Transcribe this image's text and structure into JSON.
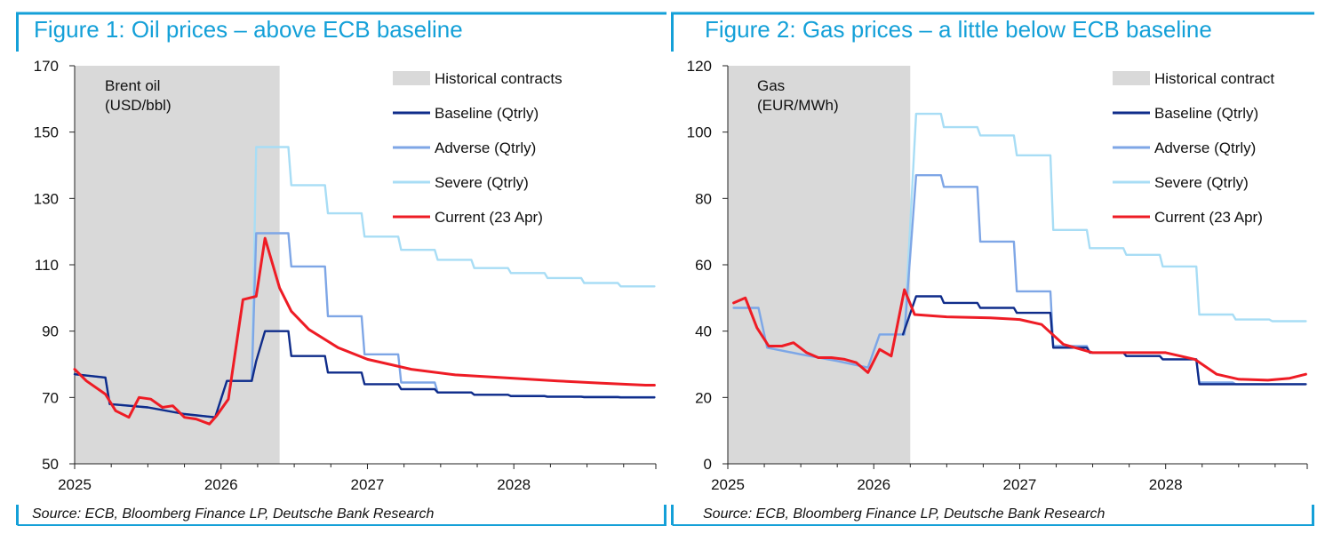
{
  "charts": [
    {
      "title": "Figure 1: Oil prices – above ECB baseline",
      "source": "Source: ECB, Bloomberg Finance LP, Deutsche Bank Research",
      "colors": {
        "accent": "#14a0d8"
      },
      "chart_data": {
        "type": "line",
        "unit_label": [
          "Brent oil",
          "(USD/bbl)"
        ],
        "x_range": [
          2025.0,
          2028.97
        ],
        "ylim": [
          50,
          170
        ],
        "yticks": [
          50,
          70,
          90,
          110,
          130,
          150,
          170
        ],
        "xticks": [
          2025,
          2026,
          2027,
          2028
        ],
        "xtick_labels": [
          "2025",
          "2026",
          "2027",
          "2028"
        ],
        "shaded_region": {
          "label": "Historical contracts",
          "x": [
            2025.0,
            2026.4
          ],
          "color": "#d9d9d9"
        },
        "series": [
          {
            "name": "Severe (Qtrly)",
            "color": "#a8ddf5",
            "width": 2.4,
            "x": [
              2025.0,
              2025.21,
              2025.24,
              2025.5,
              2025.75,
              2025.96,
              2026.04,
              2026.21,
              2026.24,
              2026.46,
              2026.48,
              2026.71,
              2026.73,
              2026.96,
              2026.98,
              2027.21,
              2027.23,
              2027.46,
              2027.48,
              2027.71,
              2027.73,
              2027.96,
              2027.98,
              2028.21,
              2028.23,
              2028.46,
              2028.48,
              2028.71,
              2028.73,
              2028.96
            ],
            "y": [
              77,
              76,
              68,
              67,
              65,
              64,
              75,
              75,
              145.5,
              145.5,
              134,
              134,
              125.5,
              125.5,
              118.5,
              118.5,
              114.5,
              114.5,
              111.5,
              111.5,
              109,
              109,
              107.5,
              107.5,
              106,
              106,
              104.5,
              104.5,
              103.5,
              103.5
            ]
          },
          {
            "name": "Adverse (Qtrly)",
            "color": "#7ea6e6",
            "width": 2.4,
            "x": [
              2025.0,
              2025.21,
              2025.24,
              2025.5,
              2025.75,
              2025.96,
              2026.04,
              2026.21,
              2026.24,
              2026.46,
              2026.48,
              2026.71,
              2026.73,
              2026.96,
              2026.98,
              2027.21,
              2027.23,
              2027.46,
              2027.48,
              2027.71,
              2027.73,
              2027.96,
              2027.98,
              2028.21,
              2028.23,
              2028.46,
              2028.48,
              2028.71,
              2028.73,
              2028.96
            ],
            "y": [
              77,
              76,
              68,
              67,
              65,
              64,
              75,
              75,
              119.5,
              119.5,
              109.5,
              109.5,
              94.5,
              94.5,
              83,
              83,
              74.5,
              74.5,
              71.5,
              71.5,
              70.8,
              70.8,
              70.5,
              70.5,
              70.3,
              70.3,
              70.2,
              70.2,
              70.1,
              70.1
            ]
          },
          {
            "name": "Baseline (Qtrly)",
            "color": "#0f2c8a",
            "width": 2.4,
            "x": [
              2025.0,
              2025.21,
              2025.24,
              2025.5,
              2025.75,
              2025.96,
              2026.04,
              2026.21,
              2026.24,
              2026.3,
              2026.46,
              2026.48,
              2026.71,
              2026.73,
              2026.96,
              2026.98,
              2027.21,
              2027.23,
              2027.46,
              2027.48,
              2027.71,
              2027.73,
              2027.96,
              2027.98,
              2028.21,
              2028.23,
              2028.46,
              2028.48,
              2028.71,
              2028.73,
              2028.96
            ],
            "y": [
              77,
              76,
              68,
              67,
              65,
              64,
              75,
              75,
              81,
              90,
              90,
              82.5,
              82.5,
              77.5,
              77.5,
              74,
              74,
              72.5,
              72.5,
              71.5,
              71.5,
              70.8,
              70.8,
              70.4,
              70.4,
              70.2,
              70.2,
              70.1,
              70.1,
              70,
              70
            ]
          },
          {
            "name": "Current (23 Apr)",
            "color": "#ee1c25",
            "width": 3,
            "x": [
              2025.0,
              2025.08,
              2025.21,
              2025.28,
              2025.37,
              2025.44,
              2025.52,
              2025.6,
              2025.67,
              2025.75,
              2025.83,
              2025.92,
              2025.97,
              2026.05,
              2026.15,
              2026.24,
              2026.3,
              2026.4,
              2026.48,
              2026.6,
              2026.8,
              2027.0,
              2027.3,
              2027.6,
              2028.0,
              2028.3,
              2028.6,
              2028.9,
              2028.96
            ],
            "y": [
              78.5,
              75,
              71,
              66,
              64,
              70,
              69.5,
              67,
              67.5,
              64,
              63.5,
              62,
              64.5,
              69.5,
              99.5,
              100.5,
              118,
              103,
              96,
              90.5,
              85,
              81.5,
              78.5,
              76.8,
              75.8,
              75,
              74.3,
              73.7,
              73.7
            ]
          }
        ],
        "legend": [
          "Historical contracts",
          "Baseline (Qtrly)",
          "Adverse (Qtrly)",
          "Severe (Qtrly)",
          "Current (23 Apr)"
        ]
      }
    },
    {
      "title": "Figure 2: Gas prices – a little below ECB baseline",
      "source": "Source: ECB, Bloomberg Finance LP, Deutsche Bank Research",
      "colors": {
        "accent": "#14a0d8"
      },
      "chart_data": {
        "type": "line",
        "unit_label": [
          "Gas",
          "(EUR/MWh)"
        ],
        "x_range": [
          2025.0,
          2028.97
        ],
        "ylim": [
          0,
          120
        ],
        "yticks": [
          0,
          20,
          40,
          60,
          80,
          100,
          120
        ],
        "xticks": [
          2025,
          2026,
          2027,
          2028
        ],
        "xtick_labels": [
          "2025",
          "2026",
          "2027",
          "2028"
        ],
        "shaded_region": {
          "label": "Historical contract",
          "x": [
            2025.0,
            2026.25
          ],
          "color": "#d9d9d9"
        },
        "series": [
          {
            "name": "Severe (Qtrly)",
            "color": "#a8ddf5",
            "width": 2.4,
            "x": [
              2025.04,
              2025.21,
              2025.27,
              2025.5,
              2025.75,
              2025.96,
              2026.04,
              2026.21,
              2026.29,
              2026.46,
              2026.48,
              2026.71,
              2026.73,
              2026.96,
              2026.98,
              2027.21,
              2027.23,
              2027.46,
              2027.48,
              2027.71,
              2027.73,
              2027.96,
              2027.98,
              2028.21,
              2028.23,
              2028.46,
              2028.48,
              2028.71,
              2028.73,
              2028.96
            ],
            "y": [
              47,
              47,
              35,
              33,
              31,
              29,
              39,
              39,
              105.5,
              105.5,
              101.5,
              101.5,
              99,
              99,
              93,
              93,
              70.5,
              70.5,
              65,
              65,
              63,
              63,
              59.5,
              59.5,
              45,
              45,
              43.5,
              43.5,
              43,
              43
            ]
          },
          {
            "name": "Adverse (Qtrly)",
            "color": "#7ea6e6",
            "width": 2.4,
            "x": [
              2025.04,
              2025.21,
              2025.27,
              2025.5,
              2025.75,
              2025.96,
              2026.04,
              2026.21,
              2026.29,
              2026.46,
              2026.48,
              2026.71,
              2026.73,
              2026.96,
              2026.98,
              2027.21,
              2027.23,
              2027.46,
              2027.48,
              2027.71,
              2027.73,
              2027.96,
              2027.98,
              2028.21,
              2028.23,
              2028.46,
              2028.48,
              2028.71,
              2028.73,
              2028.96
            ],
            "y": [
              47,
              47,
              35,
              33,
              31,
              29,
              39,
              39,
              87,
              87,
              83.5,
              83.5,
              67,
              67,
              52,
              52,
              35.5,
              35.5,
              33.5,
              33.5,
              32.5,
              32.5,
              31.5,
              31.5,
              24.5,
              24.5,
              24,
              24,
              24,
              24
            ]
          },
          {
            "name": "Baseline (Qtrly)",
            "color": "#0f2c8a",
            "width": 2.4,
            "x": [
              2026.2,
              2026.29,
              2026.46,
              2026.48,
              2026.71,
              2026.73,
              2026.96,
              2026.98,
              2027.21,
              2027.23,
              2027.46,
              2027.48,
              2027.71,
              2027.73,
              2027.96,
              2027.98,
              2028.21,
              2028.23,
              2028.46,
              2028.48,
              2028.71,
              2028.73,
              2028.96
            ],
            "y": [
              39,
              50.5,
              50.5,
              48.5,
              48.5,
              47,
              47,
              45.5,
              45.5,
              35,
              35,
              33.5,
              33.5,
              32.5,
              32.5,
              31.5,
              31.5,
              24,
              24,
              24,
              24,
              24,
              24
            ]
          },
          {
            "name": "Current (23 Apr)",
            "color": "#ee1c25",
            "width": 3,
            "x": [
              2025.04,
              2025.12,
              2025.2,
              2025.28,
              2025.37,
              2025.45,
              2025.54,
              2025.62,
              2025.71,
              2025.8,
              2025.88,
              2025.96,
              2026.04,
              2026.12,
              2026.21,
              2026.28,
              2026.5,
              2026.8,
              2027.0,
              2027.15,
              2027.3,
              2027.5,
              2027.8,
              2028.0,
              2028.2,
              2028.35,
              2028.5,
              2028.7,
              2028.85,
              2028.96
            ],
            "y": [
              48.5,
              50,
              41,
              35.5,
              35.5,
              36.5,
              33.5,
              32,
              32,
              31.5,
              30.5,
              27.5,
              34.5,
              32.5,
              52.5,
              45,
              44.3,
              44,
              43.5,
              42,
              36,
              33.5,
              33.5,
              33.5,
              31.5,
              27,
              25.5,
              25.2,
              25.8,
              27
            ]
          }
        ],
        "legend": [
          "Historical contract",
          "Baseline (Qtrly)",
          "Adverse (Qtrly)",
          "Severe (Qtrly)",
          "Current (23 Apr)"
        ]
      }
    }
  ]
}
